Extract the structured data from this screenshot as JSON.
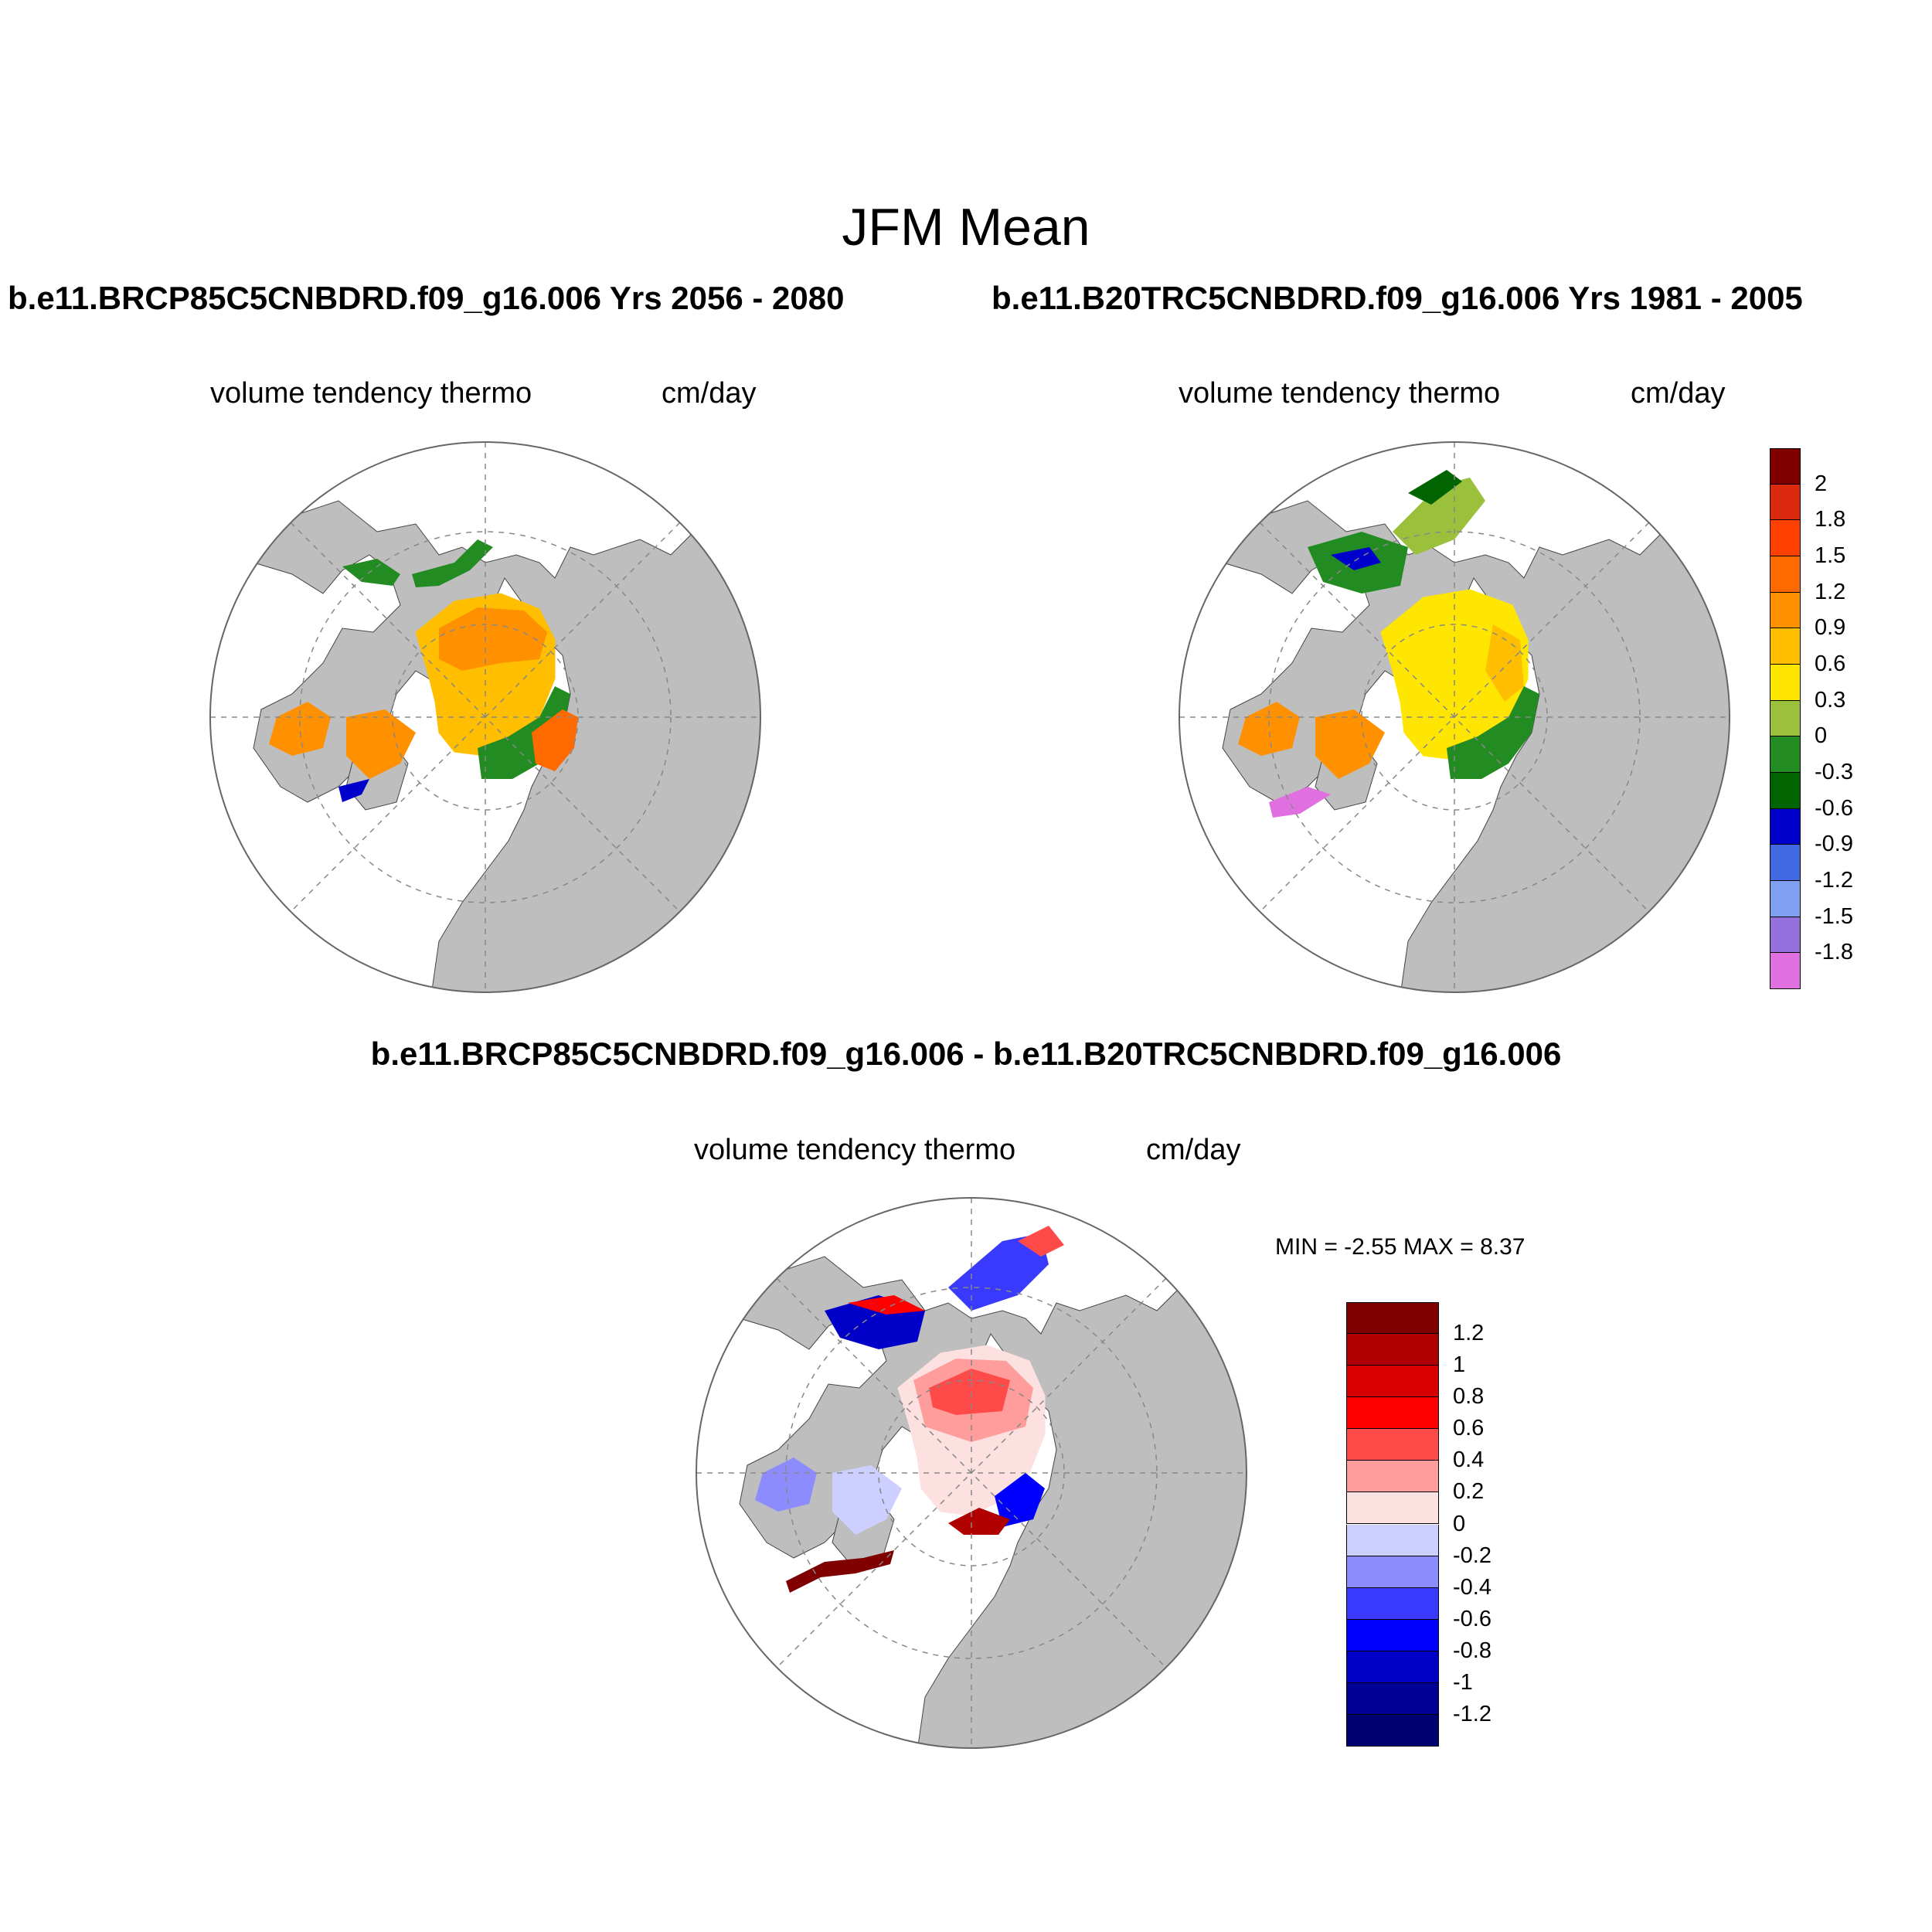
{
  "figure": {
    "title": "JFM Mean",
    "case_a_title": "b.e11.BRCP85C5CNBDRD.f09_g16.006  Yrs 2056 - 2080",
    "case_b_title": "b.e11.B20TRC5CNBDRD.f09_g16.006  Yrs 1981 - 2005",
    "diff_title": "b.e11.BRCP85C5CNBDRD.f09_g16.006 - b.e11.B20TRC5CNBDRD.f09_g16.006"
  },
  "panels": [
    {
      "variable": "volume tendency thermo",
      "units": "cm/day"
    },
    {
      "variable": "volume tendency thermo",
      "units": "cm/day"
    },
    {
      "variable": "volume tendency thermo",
      "units": "cm/day"
    }
  ],
  "diff_stats": {
    "text": "MIN =  -2.55 MAX =   8.37",
    "min": -2.55,
    "max": 8.37
  },
  "colorbar_abs": {
    "labels": [
      "2",
      "1.8",
      "1.5",
      "1.2",
      "0.9",
      "0.6",
      "0.3",
      "0",
      "-0.3",
      "-0.6",
      "-0.9",
      "-1.2",
      "-1.5",
      "-1.8"
    ],
    "colors": [
      "#800000",
      "#dc2a0e",
      "#ff4000",
      "#ff6a00",
      "#ff9100",
      "#ffbf00",
      "#ffe600",
      "#9bc13c",
      "#228b22",
      "#006400",
      "#0000cd",
      "#4169e1",
      "#7fa0f0",
      "#9370db",
      "#e070e0"
    ]
  },
  "colorbar_diff": {
    "labels": [
      "1.2",
      "1",
      "0.8",
      "0.6",
      "0.4",
      "0.2",
      "0",
      "-0.2",
      "-0.4",
      "-0.6",
      "-0.8",
      "-1",
      "-1.2"
    ],
    "colors": [
      "#800000",
      "#b00000",
      "#d80000",
      "#ff0000",
      "#ff4a4a",
      "#ff9c9c",
      "#fde0e0",
      "#cccfff",
      "#8c8cff",
      "#3a3aff",
      "#0000ff",
      "#0000c8",
      "#000096",
      "#000070"
    ]
  },
  "map_style": {
    "land": "#bebebe",
    "ocean": "#ffffff",
    "grid": "#888888"
  }
}
